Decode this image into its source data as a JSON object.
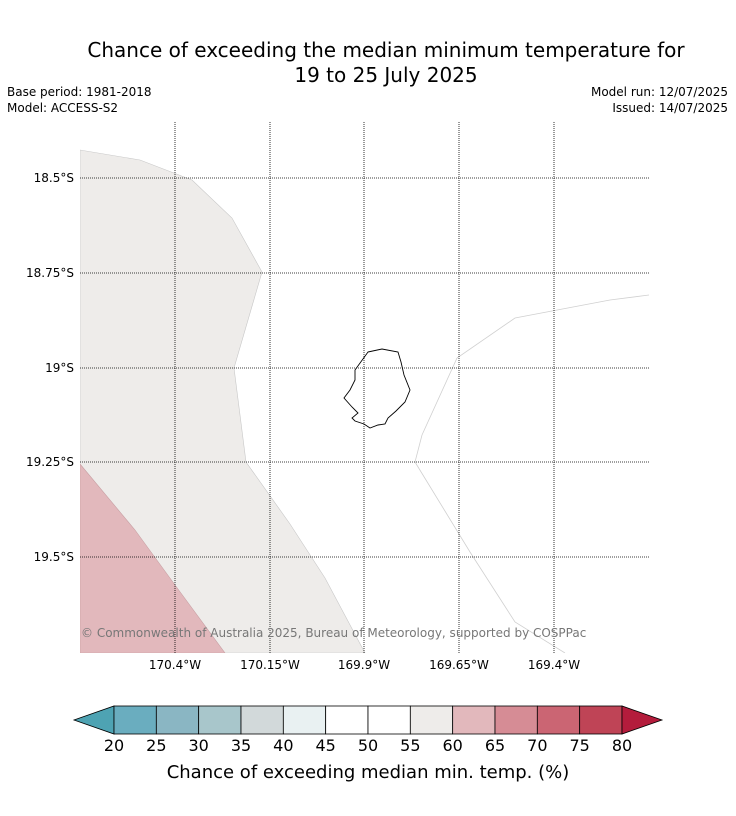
{
  "title_line1": "Chance of exceeding the median minimum temperature for",
  "title_line2": "19 to 25 July 2025",
  "base_period": "Base period: 1981-2018",
  "model": "Model: ACCESS-S2",
  "model_run": "Model run: 12/07/2025",
  "issued": "Issued: 14/07/2025",
  "lat_labels": [
    "18.5°S",
    "18.75°S",
    "19°S",
    "19.25°S",
    "19.5°S"
  ],
  "lon_labels": [
    "170.4°W",
    "170.15°W",
    "169.9°W",
    "169.65°W",
    "169.4°W"
  ],
  "copyright": "© Commonwealth of Australia 2025, Bureau of Meteorology, supported by COSPPac",
  "colorbar": {
    "ticks": [
      "20",
      "25",
      "30",
      "35",
      "40",
      "45",
      "50",
      "55",
      "60",
      "65",
      "70",
      "75",
      "80"
    ],
    "label": "Chance of exceeding median min. temp. (%)",
    "colors": [
      "#4ea3b3",
      "#6aadbf",
      "#8ab6c3",
      "#a8c6cb",
      "#d2d9da",
      "#e9f1f2",
      "#ffffff",
      "#ffffff",
      "#eeecea",
      "#e2b8bc",
      "#d68c95",
      "#cb6573",
      "#bf4456",
      "#b41c3c"
    ]
  },
  "map_regions": [
    {
      "name": "50-55 band (west)",
      "fill": "#eeecea"
    },
    {
      "name": "60-65 band (southwest)",
      "fill": "#e2b8bc"
    },
    {
      "name": "Niue island",
      "fill": "#ffffff"
    }
  ]
}
